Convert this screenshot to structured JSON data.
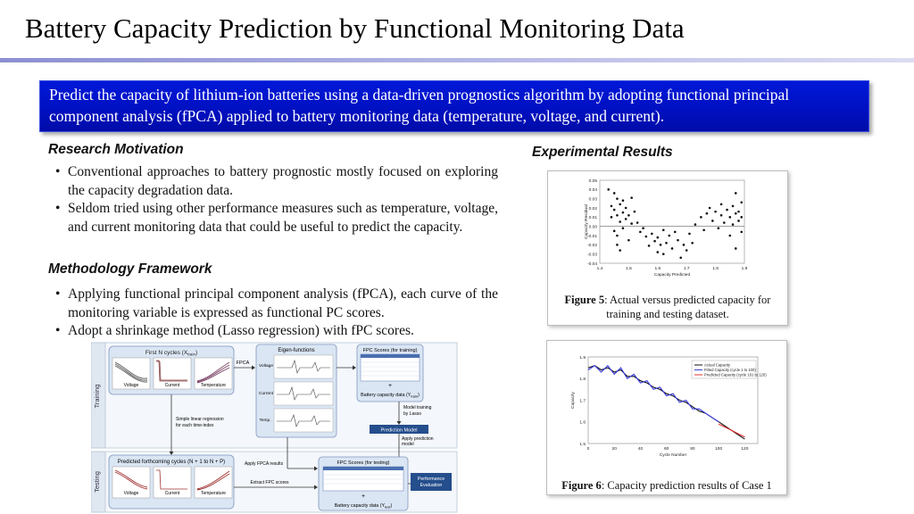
{
  "title": "Battery Capacity Prediction by Functional Monitoring Data",
  "banner": "Predict the capacity of lithium-ion batteries using a data-driven prognostics algorithm by adopting functional principal component analysis (fPCA) applied to battery monitoring data (temperature, voltage, and current).",
  "motivation": {
    "heading": "Research Motivation",
    "items": [
      "Conventional approaches to battery prognostic mostly focused on exploring the capacity degradation data.",
      "Seldom tried using other performance measures such as temperature, voltage, and current monitoring data that could be useful to predict the capacity."
    ]
  },
  "methodology": {
    "heading": "Methodology Framework",
    "items": [
      "Applying functional principal component analysis (fPCA), each curve of the monitoring variable is expressed as functional PC scores.",
      "Adopt a shrinkage method (Lasso regression) with fPC scores."
    ]
  },
  "framework": {
    "training_label": "Training",
    "testing_label": "Testing",
    "first_cycles": "First N cycles (X",
    "first_cycles_sub": "train",
    "voltage": "Voltage",
    "current": "Current",
    "temperature": "Temperature",
    "fpca": "FPCA",
    "eigen": "Eigen-functions",
    "eig_voltage": "Voltage",
    "eig_current": "Current",
    "eig_temp": "Temp.",
    "fpc_training": "FPC Scores (for training)",
    "battery_train": "Battery capacity data (Y",
    "battery_train_sub": "train",
    "model_training_1": "Model training",
    "model_training_2": "by Lasso",
    "prediction_model": "Prediction Model",
    "apply_pred_1": "Apply prediction",
    "apply_pred_2": "model",
    "simple_lr_1": "Simple linear regression",
    "simple_lr_2": "for each time-index",
    "predicted_cycles": "Predicted forthcoming cycles (N + 1 to N + P)",
    "apply_fpca": "Apply FPCA results",
    "extract_fpc": "Extract FPC scores",
    "fpc_testing": "FPC Scores (for testing)",
    "battery_test": "Battery capacity data (Y",
    "battery_test_sub": "test",
    "performance_1": "Performance",
    "performance_2": "Evaluation",
    "plus": "+"
  },
  "results": {
    "heading": "Experimental Results",
    "fig5_label": "Figure 5",
    "fig5_text": ": Actual versus predicted capacity for training and testing dataset.",
    "fig6_label": "Figure 6",
    "fig6_text": ": Capacity prediction results of Case 1"
  },
  "chart_data": [
    {
      "type": "scatter",
      "title": "",
      "xlabel": "Capacity Predicted",
      "ylabel": "Capacity Residual",
      "xlim": [
        1.4,
        1.9
      ],
      "ylim": [
        -0.04,
        0.05
      ],
      "xticks": [
        "1.4",
        "1.5",
        "1.6",
        "1.7",
        "1.8",
        "1.9"
      ],
      "yticks": [
        "0.05",
        "0.04",
        "0.03",
        "0.02",
        "0.01",
        "0.00",
        "-0.01",
        "-0.02",
        "-0.03",
        "-0.04"
      ],
      "points": [
        [
          1.43,
          0.04
        ],
        [
          1.44,
          0.022
        ],
        [
          1.44,
          0.01
        ],
        [
          1.45,
          0.036
        ],
        [
          1.45,
          0.018
        ],
        [
          1.45,
          -0.005
        ],
        [
          1.46,
          0.03
        ],
        [
          1.46,
          0.012
        ],
        [
          1.46,
          -0.01
        ],
        [
          1.46,
          -0.02
        ],
        [
          1.47,
          0.024
        ],
        [
          1.47,
          0.005
        ],
        [
          1.47,
          -0.026
        ],
        [
          1.48,
          0.028
        ],
        [
          1.48,
          0.015
        ],
        [
          1.48,
          -0.002
        ],
        [
          1.49,
          0.02
        ],
        [
          1.49,
          0.008
        ],
        [
          1.5,
          0.012
        ],
        [
          1.5,
          -0.015
        ],
        [
          1.51,
          0.031
        ],
        [
          1.51,
          0.003
        ],
        [
          1.52,
          0.016
        ],
        [
          1.53,
          0.004
        ],
        [
          1.54,
          -0.006
        ],
        [
          1.55,
          -0.002
        ],
        [
          1.56,
          -0.011
        ],
        [
          1.57,
          -0.021
        ],
        [
          1.58,
          -0.008
        ],
        [
          1.59,
          -0.016
        ],
        [
          1.6,
          -0.028
        ],
        [
          1.6,
          -0.012
        ],
        [
          1.61,
          -0.02
        ],
        [
          1.62,
          -0.004
        ],
        [
          1.62,
          -0.03
        ],
        [
          1.63,
          -0.018
        ],
        [
          1.64,
          -0.01
        ],
        [
          1.65,
          -0.024
        ],
        [
          1.66,
          -0.006
        ],
        [
          1.67,
          -0.015
        ],
        [
          1.68,
          -0.034
        ],
        [
          1.69,
          -0.02
        ],
        [
          1.7,
          -0.026
        ],
        [
          1.71,
          -0.008
        ],
        [
          1.72,
          -0.018
        ],
        [
          1.73,
          0.002
        ],
        [
          1.75,
          0.01
        ],
        [
          1.76,
          -0.004
        ],
        [
          1.77,
          0.014
        ],
        [
          1.78,
          0.02
        ],
        [
          1.79,
          0.006
        ],
        [
          1.8,
          0.016
        ],
        [
          1.81,
          -0.002
        ],
        [
          1.82,
          0.012
        ],
        [
          1.82,
          0.024
        ],
        [
          1.83,
          0.004
        ],
        [
          1.84,
          0.018
        ],
        [
          1.85,
          0.01
        ],
        [
          1.85,
          -0.01
        ],
        [
          1.86,
          0.022
        ],
        [
          1.86,
          0.002
        ],
        [
          1.87,
          0.036
        ],
        [
          1.87,
          0.014
        ],
        [
          1.87,
          -0.024
        ],
        [
          1.88,
          0.016
        ],
        [
          1.88,
          0.006
        ],
        [
          1.89,
          0.026
        ],
        [
          1.89,
          0.01
        ],
        [
          1.89,
          -0.006
        ]
      ]
    },
    {
      "type": "line",
      "xlabel": "Cycle Number",
      "ylabel": "Capacity",
      "xlim": [
        0,
        130
      ],
      "ylim": [
        1.5,
        1.9
      ],
      "xticks": [
        "0",
        "20",
        "40",
        "60",
        "80",
        "100",
        "120"
      ],
      "yticks": [
        "1.9",
        "1.8",
        "1.7",
        "1.6",
        "1.5"
      ],
      "legend_position": "top-right",
      "series": [
        {
          "name": "Actual Capacity",
          "color": "#111111",
          "x": [
            0,
            5,
            10,
            15,
            20,
            25,
            30,
            35,
            40,
            45,
            50,
            55,
            60,
            65,
            70,
            75,
            80,
            85,
            90,
            95,
            100,
            105,
            110,
            115,
            120
          ],
          "y": [
            1.85,
            1.86,
            1.84,
            1.85,
            1.83,
            1.84,
            1.81,
            1.81,
            1.79,
            1.78,
            1.76,
            1.75,
            1.73,
            1.72,
            1.7,
            1.69,
            1.67,
            1.65,
            1.64,
            1.62,
            1.6,
            1.58,
            1.56,
            1.54,
            1.52
          ]
        },
        {
          "name": "Fitted Capacity (cycle 1 to 100)",
          "color": "#3a3ae0",
          "x": [
            0,
            5,
            10,
            15,
            20,
            25,
            30,
            35,
            40,
            45,
            50,
            55,
            60,
            65,
            70,
            75,
            80,
            85,
            90,
            95,
            100
          ],
          "y": [
            1.84,
            1.86,
            1.83,
            1.86,
            1.82,
            1.85,
            1.8,
            1.82,
            1.78,
            1.79,
            1.75,
            1.76,
            1.72,
            1.73,
            1.69,
            1.7,
            1.66,
            1.66,
            1.64,
            1.62,
            1.6
          ]
        },
        {
          "name": "Predicted Capacity (cycle 101 to 120)",
          "color": "#e03030",
          "x": [
            100,
            105,
            110,
            115,
            120
          ],
          "y": [
            1.59,
            1.575,
            1.56,
            1.545,
            1.53
          ]
        }
      ]
    }
  ]
}
